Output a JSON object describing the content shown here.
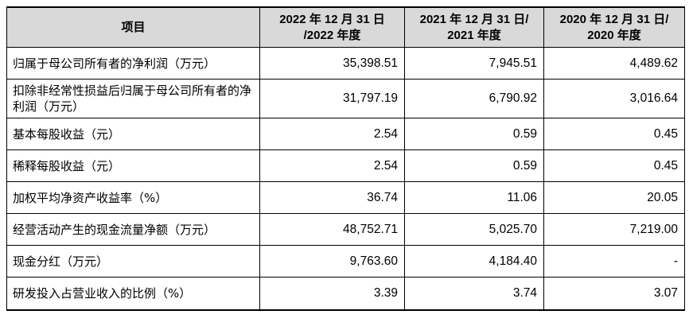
{
  "table": {
    "headers": [
      "项目",
      "2022 年 12 月 31 日 /2022 年度",
      "2021 年 12 月 31 日/ 2021 年度",
      "2020 年 12 月 31 日/ 2020 年度"
    ],
    "header_lines": [
      [
        "项目"
      ],
      [
        "2022 年 12 月 31 日",
        "/2022 年度"
      ],
      [
        "2021 年 12 月 31 日/",
        "2021 年度"
      ],
      [
        "2020 年 12 月 31 日/",
        "2020 年度"
      ]
    ],
    "rows": [
      {
        "label": "归属于母公司所有者的净利润（万元）",
        "values": [
          "35,398.51",
          "7,945.51",
          "4,489.62"
        ]
      },
      {
        "label": "扣除非经常性损益后归属于母公司所有者的净利润（万元）",
        "values": [
          "31,797.19",
          "6,790.92",
          "3,016.64"
        ]
      },
      {
        "label": "基本每股收益（元）",
        "values": [
          "2.54",
          "0.59",
          "0.45"
        ]
      },
      {
        "label": "稀释每股收益（元）",
        "values": [
          "2.54",
          "0.59",
          "0.45"
        ]
      },
      {
        "label": "加权平均净资产收益率（%）",
        "values": [
          "36.74",
          "11.06",
          "20.05"
        ]
      },
      {
        "label": "经营活动产生的现金流量净额（万元）",
        "values": [
          "48,752.71",
          "5,025.70",
          "7,219.00"
        ]
      },
      {
        "label": "现金分红（万元）",
        "values": [
          "9,763.60",
          "4,184.40",
          "-"
        ]
      },
      {
        "label": "研发投入占营业收入的比例（%）",
        "values": [
          "3.39",
          "3.74",
          "3.07"
        ]
      }
    ]
  },
  "colors": {
    "header_bg": "#d9d9d9",
    "border": "#000000",
    "text": "#000000"
  }
}
